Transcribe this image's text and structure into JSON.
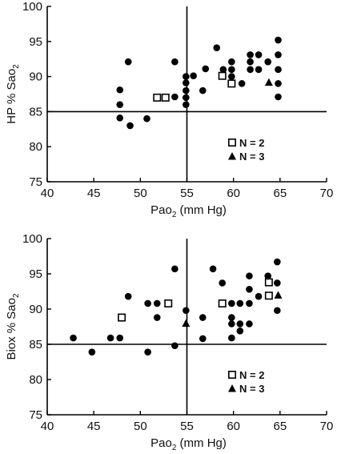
{
  "chart_data": [
    {
      "type": "scatter",
      "id": "top",
      "xlabel": {
        "main": "Pao",
        "sub": "2",
        "rest": " (mm Hg)"
      },
      "ylabel": {
        "main": "HP % Sao",
        "sub": "2"
      },
      "xlim": [
        40,
        70
      ],
      "ylim": [
        75,
        100
      ],
      "xticks": [
        40,
        45,
        50,
        55,
        60,
        65,
        70
      ],
      "yticks": [
        75,
        80,
        85,
        90,
        95,
        100
      ],
      "reference_lines": {
        "x": 55,
        "y": 85
      },
      "legend": [
        {
          "marker": "square",
          "label": "N = 2"
        },
        {
          "marker": "triangle",
          "label": "N = 3"
        }
      ],
      "series": [
        {
          "marker": "circle",
          "points": [
            [
              47.8,
              88.1
            ],
            [
              47.8,
              86.0
            ],
            [
              47.8,
              84.1
            ],
            [
              48.7,
              92.1
            ],
            [
              48.9,
              83.0
            ],
            [
              50.7,
              84.0
            ],
            [
              53.7,
              92.1
            ],
            [
              53.7,
              87.1
            ],
            [
              54.9,
              90.0
            ],
            [
              54.9,
              89.1
            ],
            [
              54.9,
              88.0
            ],
            [
              54.9,
              87.0
            ],
            [
              54.9,
              86.0
            ],
            [
              55.7,
              90.1
            ],
            [
              56.7,
              88.0
            ],
            [
              57.0,
              91.1
            ],
            [
              58.2,
              94.1
            ],
            [
              58.9,
              91.0
            ],
            [
              59.8,
              92.1
            ],
            [
              59.8,
              91.0
            ],
            [
              59.8,
              90.0
            ],
            [
              60.9,
              89.0
            ],
            [
              61.8,
              93.1
            ],
            [
              61.8,
              92.1
            ],
            [
              61.8,
              91.0
            ],
            [
              62.7,
              93.1
            ],
            [
              62.7,
              91.0
            ],
            [
              63.7,
              92.1
            ],
            [
              64.8,
              95.2
            ],
            [
              64.8,
              93.1
            ],
            [
              64.8,
              91.0
            ],
            [
              64.8,
              89.0
            ],
            [
              64.8,
              87.1
            ]
          ]
        },
        {
          "marker": "square",
          "points": [
            [
              51.8,
              87.0
            ],
            [
              52.7,
              87.0
            ],
            [
              58.8,
              90.1
            ],
            [
              59.8,
              89.0
            ]
          ]
        },
        {
          "marker": "triangle",
          "points": [
            [
              63.8,
              89.2
            ]
          ]
        }
      ]
    },
    {
      "type": "scatter",
      "id": "bottom",
      "xlabel": {
        "main": "Pao",
        "sub": "2",
        "rest": " (mm Hg)"
      },
      "ylabel": {
        "main": "Biox % Sao",
        "sub": "2"
      },
      "xlim": [
        40,
        70
      ],
      "ylim": [
        75,
        100
      ],
      "xticks": [
        40,
        45,
        50,
        55,
        60,
        65,
        70
      ],
      "yticks": [
        75,
        80,
        85,
        90,
        95,
        100
      ],
      "reference_lines": {
        "x": 55,
        "y": 85
      },
      "legend": [
        {
          "marker": "square",
          "label": "N = 2"
        },
        {
          "marker": "triangle",
          "label": "N = 3"
        }
      ],
      "series": [
        {
          "marker": "circle",
          "points": [
            [
              42.8,
              85.9
            ],
            [
              44.8,
              83.9
            ],
            [
              46.8,
              85.9
            ],
            [
              47.8,
              85.9
            ],
            [
              48.7,
              91.8
            ],
            [
              50.8,
              90.8
            ],
            [
              50.8,
              83.9
            ],
            [
              51.8,
              90.8
            ],
            [
              51.8,
              88.8
            ],
            [
              53.7,
              95.7
            ],
            [
              53.7,
              84.8
            ],
            [
              54.9,
              89.8
            ],
            [
              56.7,
              88.8
            ],
            [
              56.7,
              85.8
            ],
            [
              57.8,
              95.7
            ],
            [
              58.8,
              93.7
            ],
            [
              58.8,
              90.8
            ],
            [
              59.8,
              90.8
            ],
            [
              59.8,
              88.8
            ],
            [
              59.8,
              87.9
            ],
            [
              59.8,
              85.9
            ],
            [
              60.7,
              90.8
            ],
            [
              60.7,
              87.9
            ],
            [
              60.7,
              86.9
            ],
            [
              61.7,
              94.7
            ],
            [
              61.7,
              92.8
            ],
            [
              61.7,
              90.8
            ],
            [
              61.7,
              87.9
            ],
            [
              62.7,
              91.8
            ],
            [
              63.7,
              94.7
            ],
            [
              64.7,
              96.7
            ],
            [
              64.7,
              93.7
            ],
            [
              64.7,
              89.8
            ]
          ]
        },
        {
          "marker": "square",
          "points": [
            [
              48.0,
              88.8
            ],
            [
              53.0,
              90.8
            ],
            [
              58.8,
              90.8
            ],
            [
              63.8,
              93.8
            ],
            [
              63.8,
              91.9
            ]
          ]
        },
        {
          "marker": "triangle",
          "points": [
            [
              54.9,
              88.0
            ],
            [
              64.8,
              92.0
            ]
          ]
        }
      ]
    }
  ]
}
